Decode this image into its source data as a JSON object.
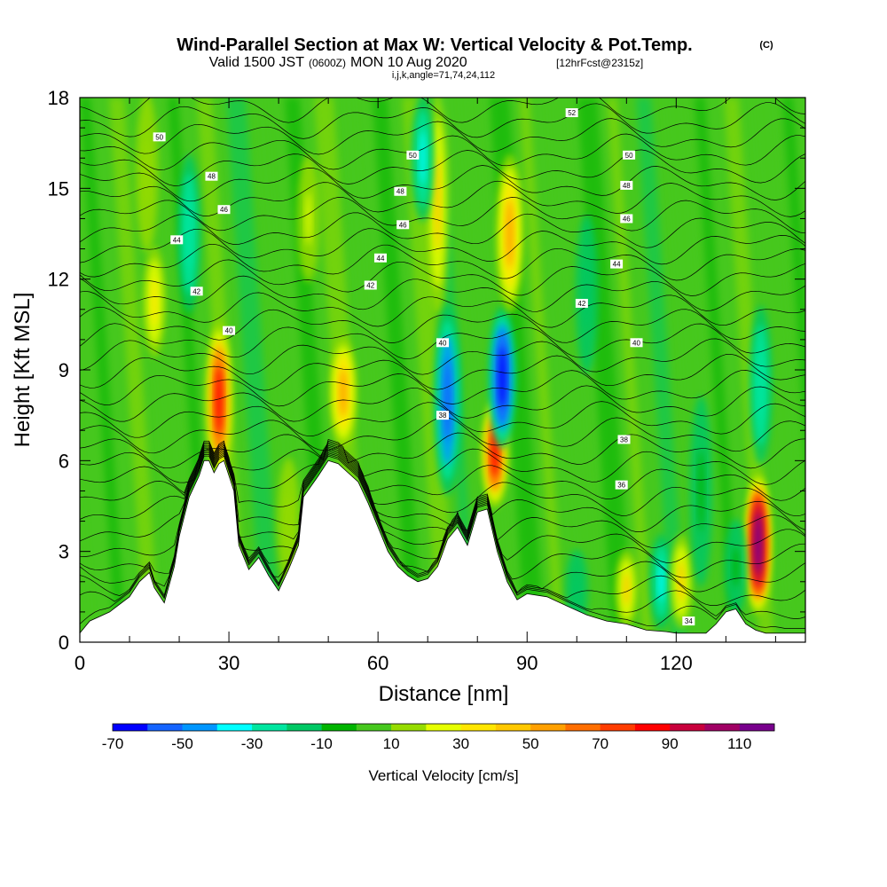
{
  "title": {
    "main": "Wind-Parallel Section at Max W: Vertical Velocity & Pot.Temp.",
    "copyright": "(C)",
    "valid_prefix": "Valid 1500 JST",
    "valid_utc": "(0600Z)",
    "valid_date": "MON 10 Aug 2020",
    "forecast": "[12hrFcst@2315z]",
    "indices": "i,j,k,angle=71,74,24,112"
  },
  "colors": {
    "scale": [
      "#0000ff",
      "#1464ff",
      "#0096ff",
      "#00ffff",
      "#00e6a0",
      "#00c864",
      "#00b400",
      "#46c81e",
      "#96dc00",
      "#e6ff00",
      "#ffe600",
      "#ffc800",
      "#ffa000",
      "#ff6e00",
      "#ff3c00",
      "#ff0000",
      "#c8003c",
      "#a00064",
      "#78008c"
    ],
    "terrain": "#ffffff",
    "contour": "#000000"
  },
  "chart_data": {
    "type": "heatmap",
    "xlabel": "Distance [nm]",
    "ylabel": "Height [Kft MSL]",
    "xlim": [
      0,
      146
    ],
    "ylim": [
      0,
      18
    ],
    "xticks": [
      0,
      30,
      60,
      90,
      120
    ],
    "yticks": [
      0,
      3,
      6,
      9,
      12,
      15,
      18
    ],
    "colorbar": {
      "title": "Vertical Velocity [cm/s]",
      "levels": [
        -70,
        -60,
        -50,
        -40,
        -30,
        -20,
        -10,
        0,
        10,
        20,
        30,
        40,
        50,
        60,
        70,
        80,
        90,
        100,
        110,
        120
      ],
      "tick_labels": [
        "-70",
        "-50",
        "-30",
        "-10",
        "10",
        "30",
        "50",
        "70",
        "90",
        "110"
      ]
    },
    "terrain_profile": {
      "x": [
        0,
        2,
        6,
        10,
        12,
        14,
        15,
        17,
        19,
        20,
        22,
        24,
        25,
        26,
        27,
        28,
        29,
        31,
        32,
        34,
        36,
        38,
        40,
        42,
        44,
        45,
        48,
        50,
        52,
        54,
        56,
        58,
        60,
        62,
        64,
        66,
        68,
        70,
        72,
        74,
        76,
        78,
        80,
        82,
        84,
        86,
        88,
        90,
        94,
        98,
        102,
        106,
        110,
        114,
        118,
        120,
        122,
        126,
        128,
        130,
        132,
        134,
        136,
        138,
        140,
        146
      ],
      "height_kft": [
        0.3,
        0.7,
        1.0,
        1.5,
        2.0,
        2.3,
        1.8,
        1.3,
        2.5,
        3.5,
        4.8,
        5.5,
        6.0,
        6.0,
        5.6,
        5.9,
        6.0,
        5.0,
        3.2,
        2.4,
        2.8,
        2.2,
        1.7,
        2.4,
        3.2,
        4.8,
        5.5,
        6.0,
        5.9,
        5.6,
        5.3,
        4.6,
        3.8,
        3.0,
        2.5,
        2.2,
        2.0,
        2.1,
        2.5,
        3.4,
        3.8,
        3.2,
        4.3,
        4.4,
        3.0,
        2.0,
        1.4,
        1.6,
        1.5,
        1.2,
        0.9,
        0.7,
        0.6,
        0.4,
        0.35,
        0.3,
        0.3,
        0.3,
        0.6,
        1.0,
        1.1,
        0.6,
        0.4,
        0.3,
        0.3,
        0.3
      ]
    },
    "features": [
      {
        "x": 28,
        "z0": 5.5,
        "z1": 10.5,
        "w": 80
      },
      {
        "x": 15,
        "z0": 9.5,
        "z1": 13,
        "w": 30
      },
      {
        "x": 13.5,
        "z0": 13,
        "z1": 18,
        "w": 10
      },
      {
        "x": 22,
        "z0": 11,
        "z1": 16,
        "w": -30
      },
      {
        "x": 53,
        "z0": 6.5,
        "z1": 10,
        "w": 50
      },
      {
        "x": 42,
        "z0": 2,
        "z1": 6,
        "w": 10
      },
      {
        "x": 46,
        "z0": 12,
        "z1": 16,
        "w": 20
      },
      {
        "x": 72,
        "z0": 11,
        "z1": 18,
        "w": 40
      },
      {
        "x": 74,
        "z0": 5,
        "z1": 11,
        "w": -60
      },
      {
        "x": 83.5,
        "z0": 4.5,
        "z1": 8,
        "w": 80
      },
      {
        "x": 85,
        "z0": 6.5,
        "z1": 11,
        "w": -70
      },
      {
        "x": 86.5,
        "z0": 11,
        "z1": 16,
        "w": 50
      },
      {
        "x": 69,
        "z0": 14,
        "z1": 18,
        "w": -40
      },
      {
        "x": 136.5,
        "z0": 1,
        "z1": 5.5,
        "w": 110
      },
      {
        "x": 132,
        "z0": 1,
        "z1": 4,
        "w": -10
      },
      {
        "x": 117,
        "z0": 0.5,
        "z1": 3.5,
        "w": -40
      },
      {
        "x": 121,
        "z0": 0.5,
        "z1": 3.5,
        "w": 40
      },
      {
        "x": 125,
        "z0": 2,
        "z1": 8,
        "w": -10
      },
      {
        "x": 102,
        "z0": 9,
        "z1": 14,
        "w": -20
      },
      {
        "x": 137,
        "z0": 6,
        "z1": 11,
        "w": -30
      },
      {
        "x": 110,
        "z0": 0.5,
        "z1": 3,
        "w": 40
      },
      {
        "x": 100,
        "z0": 0.5,
        "z1": 3,
        "w": -20
      }
    ],
    "contour_labels": [
      {
        "x": 16,
        "z": 16.7,
        "text": "50"
      },
      {
        "x": 26.5,
        "z": 15.4,
        "text": "48"
      },
      {
        "x": 29,
        "z": 14.3,
        "text": "46"
      },
      {
        "x": 19.5,
        "z": 13.3,
        "text": "44"
      },
      {
        "x": 23.5,
        "z": 11.6,
        "text": "42"
      },
      {
        "x": 30,
        "z": 10.3,
        "text": "40"
      },
      {
        "x": 67,
        "z": 16.1,
        "text": "50"
      },
      {
        "x": 64.5,
        "z": 14.9,
        "text": "48"
      },
      {
        "x": 65,
        "z": 13.8,
        "text": "46"
      },
      {
        "x": 60.5,
        "z": 12.7,
        "text": "44"
      },
      {
        "x": 58.5,
        "z": 11.8,
        "text": "42"
      },
      {
        "x": 73,
        "z": 9.9,
        "text": "40"
      },
      {
        "x": 73,
        "z": 7.5,
        "text": "38"
      },
      {
        "x": 99,
        "z": 17.5,
        "text": "52"
      },
      {
        "x": 110.5,
        "z": 16.1,
        "text": "50"
      },
      {
        "x": 110,
        "z": 15.1,
        "text": "48"
      },
      {
        "x": 110,
        "z": 14.0,
        "text": "46"
      },
      {
        "x": 108,
        "z": 12.5,
        "text": "44"
      },
      {
        "x": 101,
        "z": 11.2,
        "text": "42"
      },
      {
        "x": 112,
        "z": 9.9,
        "text": "40"
      },
      {
        "x": 109.5,
        "z": 6.7,
        "text": "38"
      },
      {
        "x": 109,
        "z": 5.2,
        "text": "36"
      },
      {
        "x": 122.5,
        "z": 0.7,
        "text": "34"
      }
    ]
  }
}
